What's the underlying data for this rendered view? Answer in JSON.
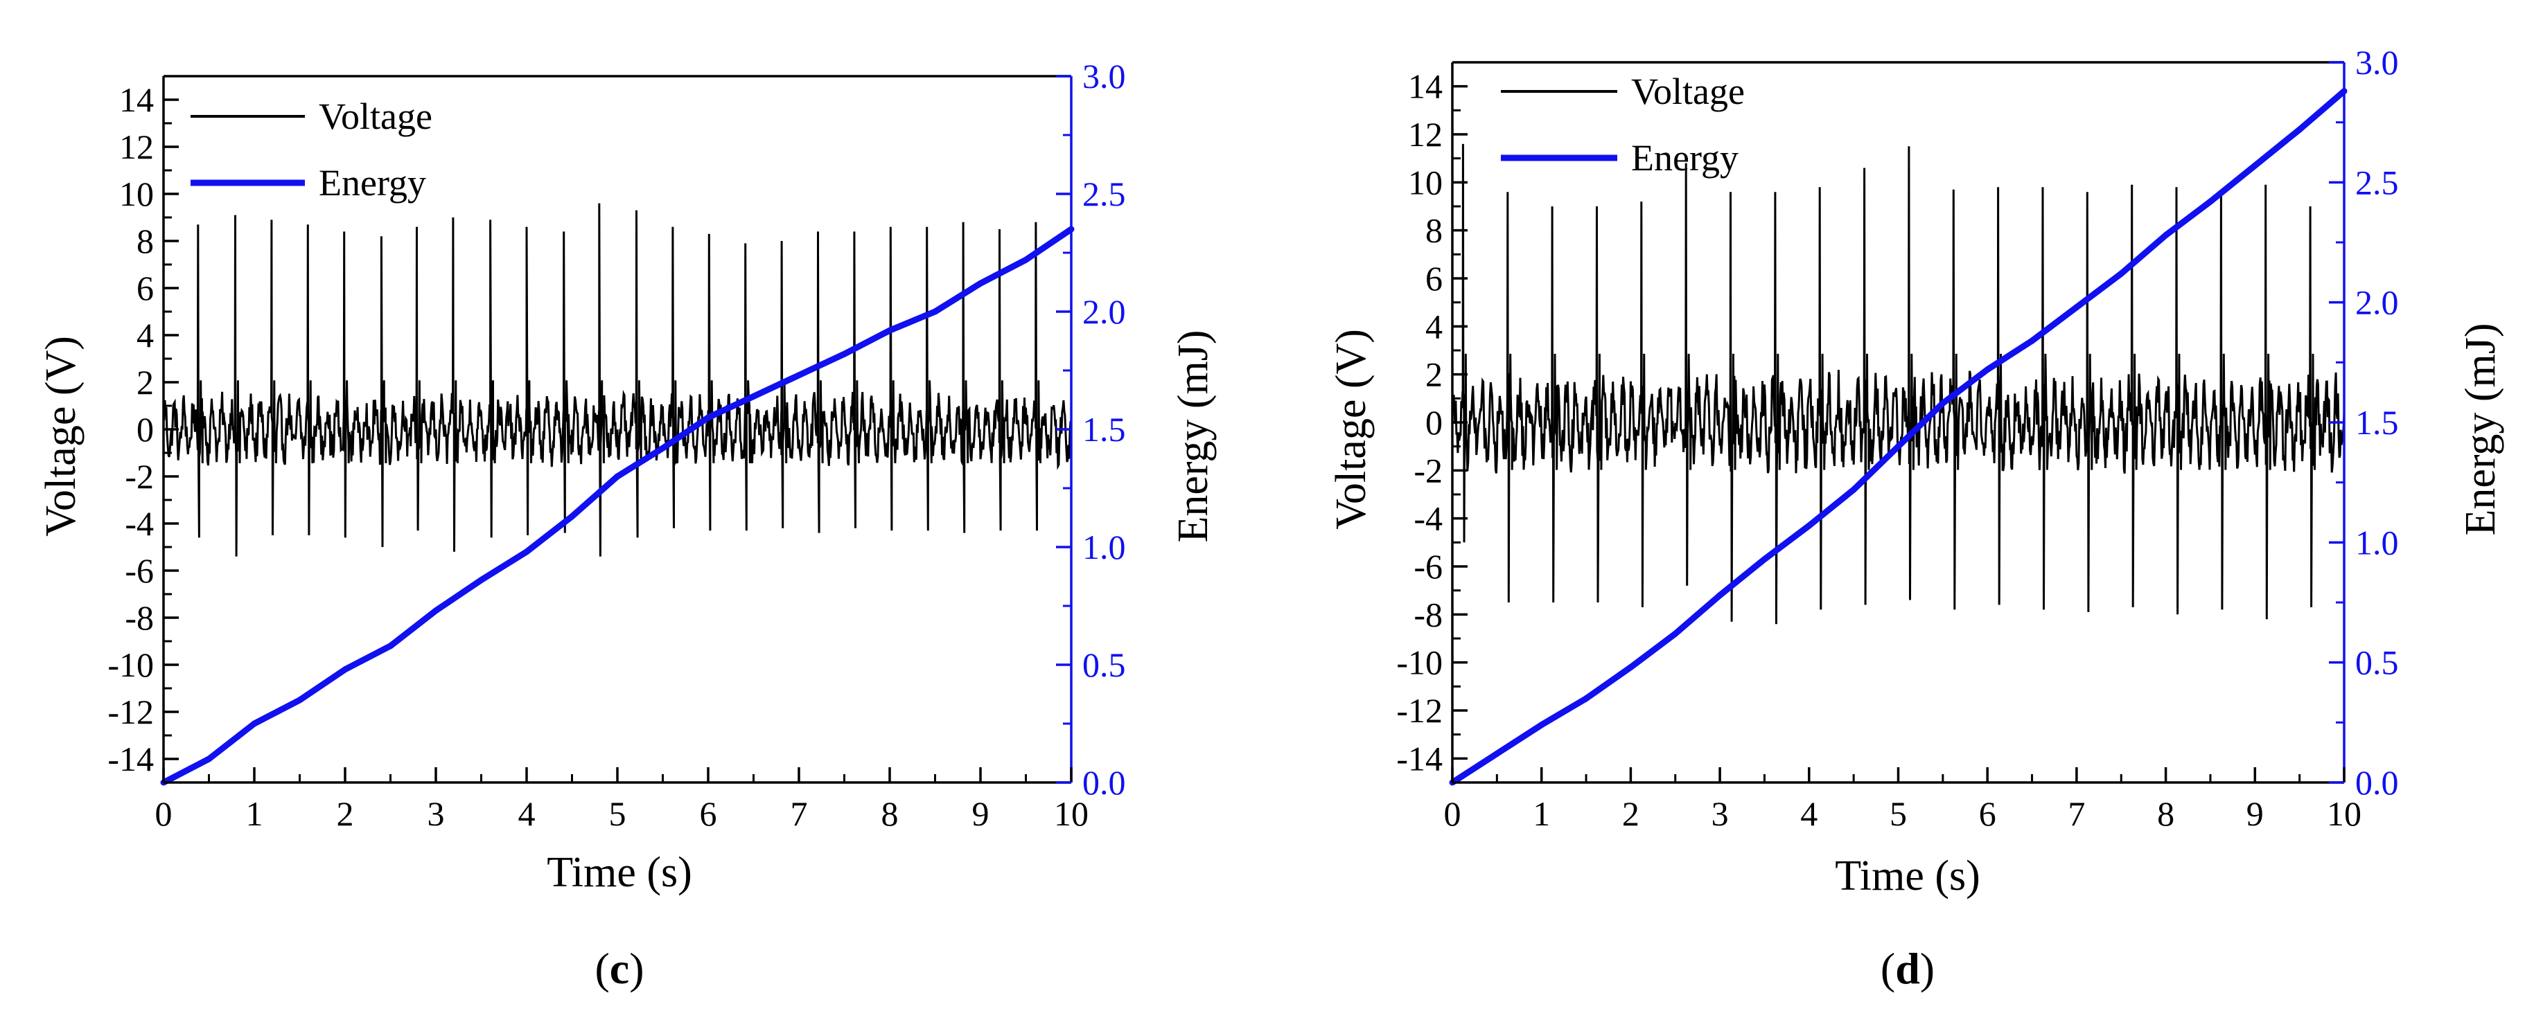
{
  "colors": {
    "voltage": "#000000",
    "energy": "#1010f0",
    "axis": "#000000",
    "energy_axis": "#1010f0"
  },
  "chart_data": [
    {
      "panel": "c",
      "type": "line",
      "caption": "(c)",
      "caption_letter": "c",
      "xlabel": "Time (s)",
      "ylabel": "Voltage (V)",
      "y2label": "Energy (mJ)",
      "xlim": [
        0,
        10
      ],
      "ylim": [
        -15,
        15
      ],
      "y2lim": [
        0,
        3.0
      ],
      "xticks": [
        0,
        1,
        2,
        3,
        4,
        5,
        6,
        7,
        8,
        9,
        10
      ],
      "yticks": [
        -14,
        -12,
        -10,
        -8,
        -6,
        -4,
        -2,
        0,
        2,
        4,
        6,
        8,
        10,
        12,
        14
      ],
      "y2ticks": [
        "0.0",
        "0.5",
        "1.0",
        "1.5",
        "2.0",
        "2.5",
        "3.0"
      ],
      "legend": {
        "position": "top-left",
        "entries": [
          "Voltage",
          "Energy"
        ]
      },
      "series": [
        {
          "name": "Voltage",
          "pulse_times": [
            0.38,
            0.79,
            1.19,
            1.59,
            1.99,
            2.4,
            2.79,
            3.19,
            3.6,
            4.0,
            4.41,
            4.8,
            5.21,
            5.61,
            6.01,
            6.41,
            6.81,
            7.21,
            7.61,
            8.01,
            8.41,
            8.81,
            9.21,
            9.61
          ],
          "pulse_peaks": [
            8.7,
            9.1,
            8.9,
            8.7,
            8.4,
            8.2,
            8.6,
            9.0,
            8.9,
            8.6,
            8.4,
            9.6,
            9.3,
            8.6,
            8.3,
            7.9,
            8.0,
            8.4,
            8.4,
            8.6,
            8.6,
            8.8,
            8.5,
            8.8
          ],
          "pulse_troughs": [
            -4.6,
            -5.4,
            -4.5,
            -4.5,
            -4.6,
            -5.0,
            -4.3,
            -5.2,
            -4.6,
            -4.5,
            -4.4,
            -5.4,
            -4.6,
            -4.2,
            -4.3,
            -4.3,
            -4.2,
            -4.4,
            -4.2,
            -4.3,
            -4.3,
            -4.4,
            -4.3,
            -4.3
          ],
          "noise_amplitude": 1.6
        },
        {
          "name": "Energy",
          "t": [
            0,
            0.5,
            1,
            1.5,
            2,
            2.5,
            3,
            3.5,
            4,
            4.5,
            5,
            5.5,
            6,
            6.5,
            7,
            7.5,
            8,
            8.5,
            9,
            9.5,
            10
          ],
          "values": [
            0.0,
            0.1,
            0.25,
            0.35,
            0.48,
            0.58,
            0.73,
            0.86,
            0.98,
            1.13,
            1.3,
            1.42,
            1.55,
            1.64,
            1.73,
            1.82,
            1.92,
            2.0,
            2.12,
            2.22,
            2.35
          ]
        }
      ]
    },
    {
      "panel": "d",
      "type": "line",
      "caption": "(d)",
      "caption_letter": "d",
      "xlabel": "Time (s)",
      "ylabel": "Voltage (V)",
      "y2label": "Energy (mJ)",
      "xlim": [
        0,
        10
      ],
      "ylim": [
        -15,
        15
      ],
      "y2lim": [
        0,
        3.0
      ],
      "xticks": [
        0,
        1,
        2,
        3,
        4,
        5,
        6,
        7,
        8,
        9,
        10
      ],
      "yticks": [
        -14,
        -12,
        -10,
        -8,
        -6,
        -4,
        -2,
        0,
        2,
        4,
        6,
        8,
        10,
        12,
        14
      ],
      "y2ticks": [
        "0.0",
        "0.5",
        "1.0",
        "1.5",
        "2.0",
        "2.5",
        "3.0"
      ],
      "legend": {
        "position": "top-left",
        "entries": [
          "Voltage",
          "Energy"
        ]
      },
      "series": [
        {
          "name": "Voltage",
          "pulse_times": [
            0.12,
            0.62,
            1.12,
            1.62,
            2.12,
            2.62,
            3.12,
            3.62,
            4.12,
            4.62,
            5.12,
            5.62,
            6.12,
            6.62,
            7.12,
            7.62,
            8.12,
            8.62,
            9.12,
            9.62
          ],
          "pulse_peaks": [
            11.6,
            9.6,
            9.0,
            9.0,
            9.2,
            10.8,
            9.6,
            9.6,
            9.8,
            10.6,
            11.5,
            9.7,
            9.8,
            9.8,
            9.6,
            9.9,
            9.8,
            9.6,
            9.9,
            9.0
          ],
          "pulse_troughs": [
            -5.0,
            -7.5,
            -7.5,
            -7.5,
            -7.7,
            -6.8,
            -8.3,
            -8.4,
            -7.8,
            -7.6,
            -7.4,
            -7.8,
            -7.6,
            -7.8,
            -7.9,
            -7.7,
            -8.0,
            -7.8,
            -8.2,
            -7.7
          ],
          "noise_amplitude": 2.2
        },
        {
          "name": "Energy",
          "t": [
            0,
            0.5,
            1,
            1.5,
            2,
            2.5,
            3,
            3.5,
            4,
            4.5,
            5,
            5.5,
            6,
            6.5,
            7,
            7.5,
            8,
            8.5,
            9,
            9.5,
            10
          ],
          "values": [
            0.0,
            0.12,
            0.24,
            0.35,
            0.48,
            0.62,
            0.78,
            0.93,
            1.07,
            1.22,
            1.4,
            1.58,
            1.72,
            1.84,
            1.98,
            2.12,
            2.28,
            2.42,
            2.57,
            2.72,
            2.88
          ]
        }
      ]
    }
  ]
}
